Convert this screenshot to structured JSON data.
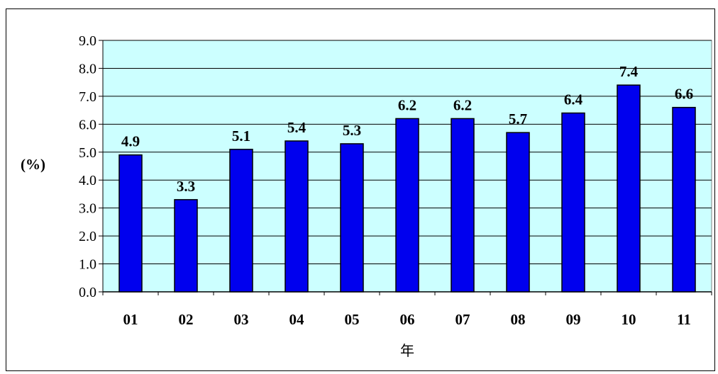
{
  "chart_data": {
    "type": "bar",
    "categories": [
      "01",
      "02",
      "03",
      "04",
      "05",
      "06",
      "07",
      "08",
      "09",
      "10",
      "11"
    ],
    "values": [
      4.9,
      3.3,
      5.1,
      5.4,
      5.3,
      6.2,
      6.2,
      5.7,
      6.4,
      7.4,
      6.6
    ],
    "value_labels": [
      "4.9",
      "3.3",
      "5.1",
      "5.4",
      "5.3",
      "6.2",
      "6.2",
      "5.7",
      "6.4",
      "7.4",
      "6.6"
    ],
    "ylabel": "(%)",
    "xlabel": "年",
    "ylim": [
      0,
      9
    ],
    "yticks": [
      "0.0",
      "1.0",
      "2.0",
      "3.0",
      "4.0",
      "5.0",
      "6.0",
      "7.0",
      "8.0",
      "9.0"
    ],
    "grid": true,
    "legend": "none",
    "colors": {
      "bar": "#0000ee",
      "plot_background": "#ccffff",
      "gridline": "#000000"
    }
  }
}
